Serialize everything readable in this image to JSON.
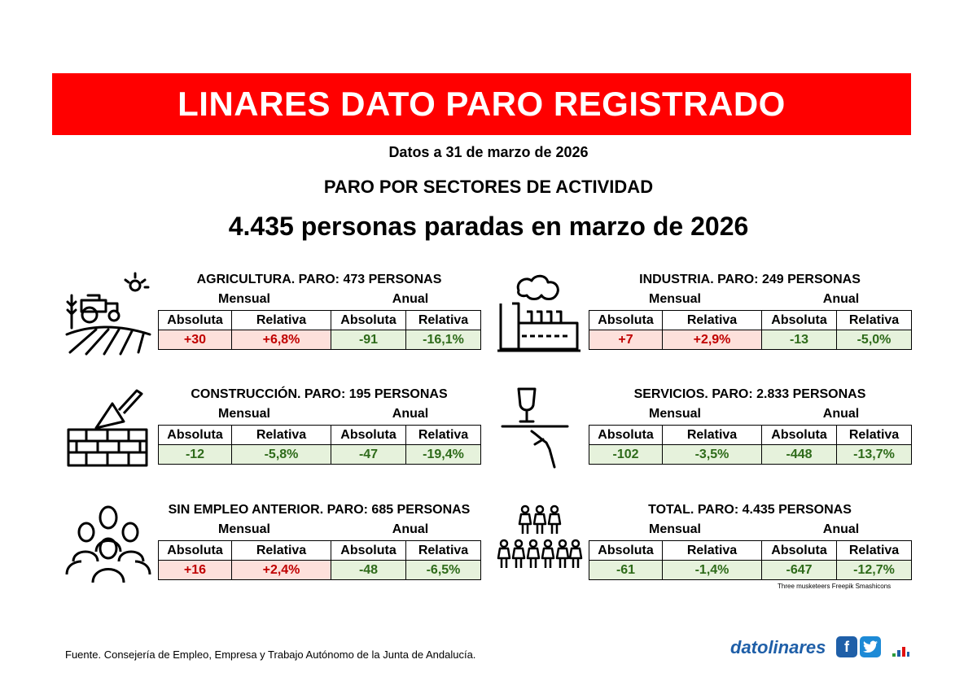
{
  "header": {
    "title": "LINARES DATO PARO REGISTRADO",
    "date": "Datos a 31 de marzo de 2026",
    "subtitle": "PARO POR SECTORES DE ACTIVIDAD",
    "headline": "4.435 personas paradas en marzo de 2026"
  },
  "labels": {
    "mensual": "Mensual",
    "anual": "Anual",
    "absoluta": "Absoluta",
    "relativa": "Relativa"
  },
  "sectors": [
    {
      "title": "AGRICULTURA. PARO: 473 PERSONAS",
      "icon": "tractor-field-icon",
      "m_abs": "+30",
      "m_rel": "+6,8%",
      "a_abs": "-91",
      "a_rel": "-16,1%"
    },
    {
      "title": "INDUSTRIA. PARO: 249 PERSONAS",
      "icon": "factory-icon",
      "m_abs": "+7",
      "m_rel": "+2,9%",
      "a_abs": "-13",
      "a_rel": "-5,0%"
    },
    {
      "title": "CONSTRUCCIÓN. PARO: 195 PERSONAS",
      "icon": "brick-wall-trowel-icon",
      "m_abs": "-12",
      "m_rel": "-5,8%",
      "a_abs": "-47",
      "a_rel": "-19,4%"
    },
    {
      "title": "SERVICIOS. PARO: 2.833 PERSONAS",
      "icon": "waiter-tray-glass-icon",
      "m_abs": "-102",
      "m_rel": "-3,5%",
      "a_abs": "-448",
      "a_rel": "-13,7%"
    },
    {
      "title": "SIN EMPLEO ANTERIOR. PARO: 685 PERSONAS",
      "icon": "people-group-icon",
      "m_abs": "+16",
      "m_rel": "+2,4%",
      "a_abs": "-48",
      "a_rel": "-6,5%"
    },
    {
      "title": "TOTAL. PARO: 4.435 PERSONAS",
      "icon": "crowd-icon",
      "m_abs": "-61",
      "m_rel": "-1,4%",
      "a_abs": "-647",
      "a_rel": "-12,7%"
    }
  ],
  "colors": {
    "banner": "#ff0000",
    "increase_bg": "#fde0db",
    "increase_text": "#c00000",
    "decrease_bg": "#e6f2dc",
    "decrease_text": "#2e6b1a"
  },
  "footer": {
    "credit": "Three musketeers Freepik Smashicons",
    "source": "Fuente. Consejería de Empleo, Empresa y Trabajo Autónomo de la Junta de Andalucía.",
    "brand": "datolinares",
    "facebook": "f",
    "twitter": "t"
  }
}
